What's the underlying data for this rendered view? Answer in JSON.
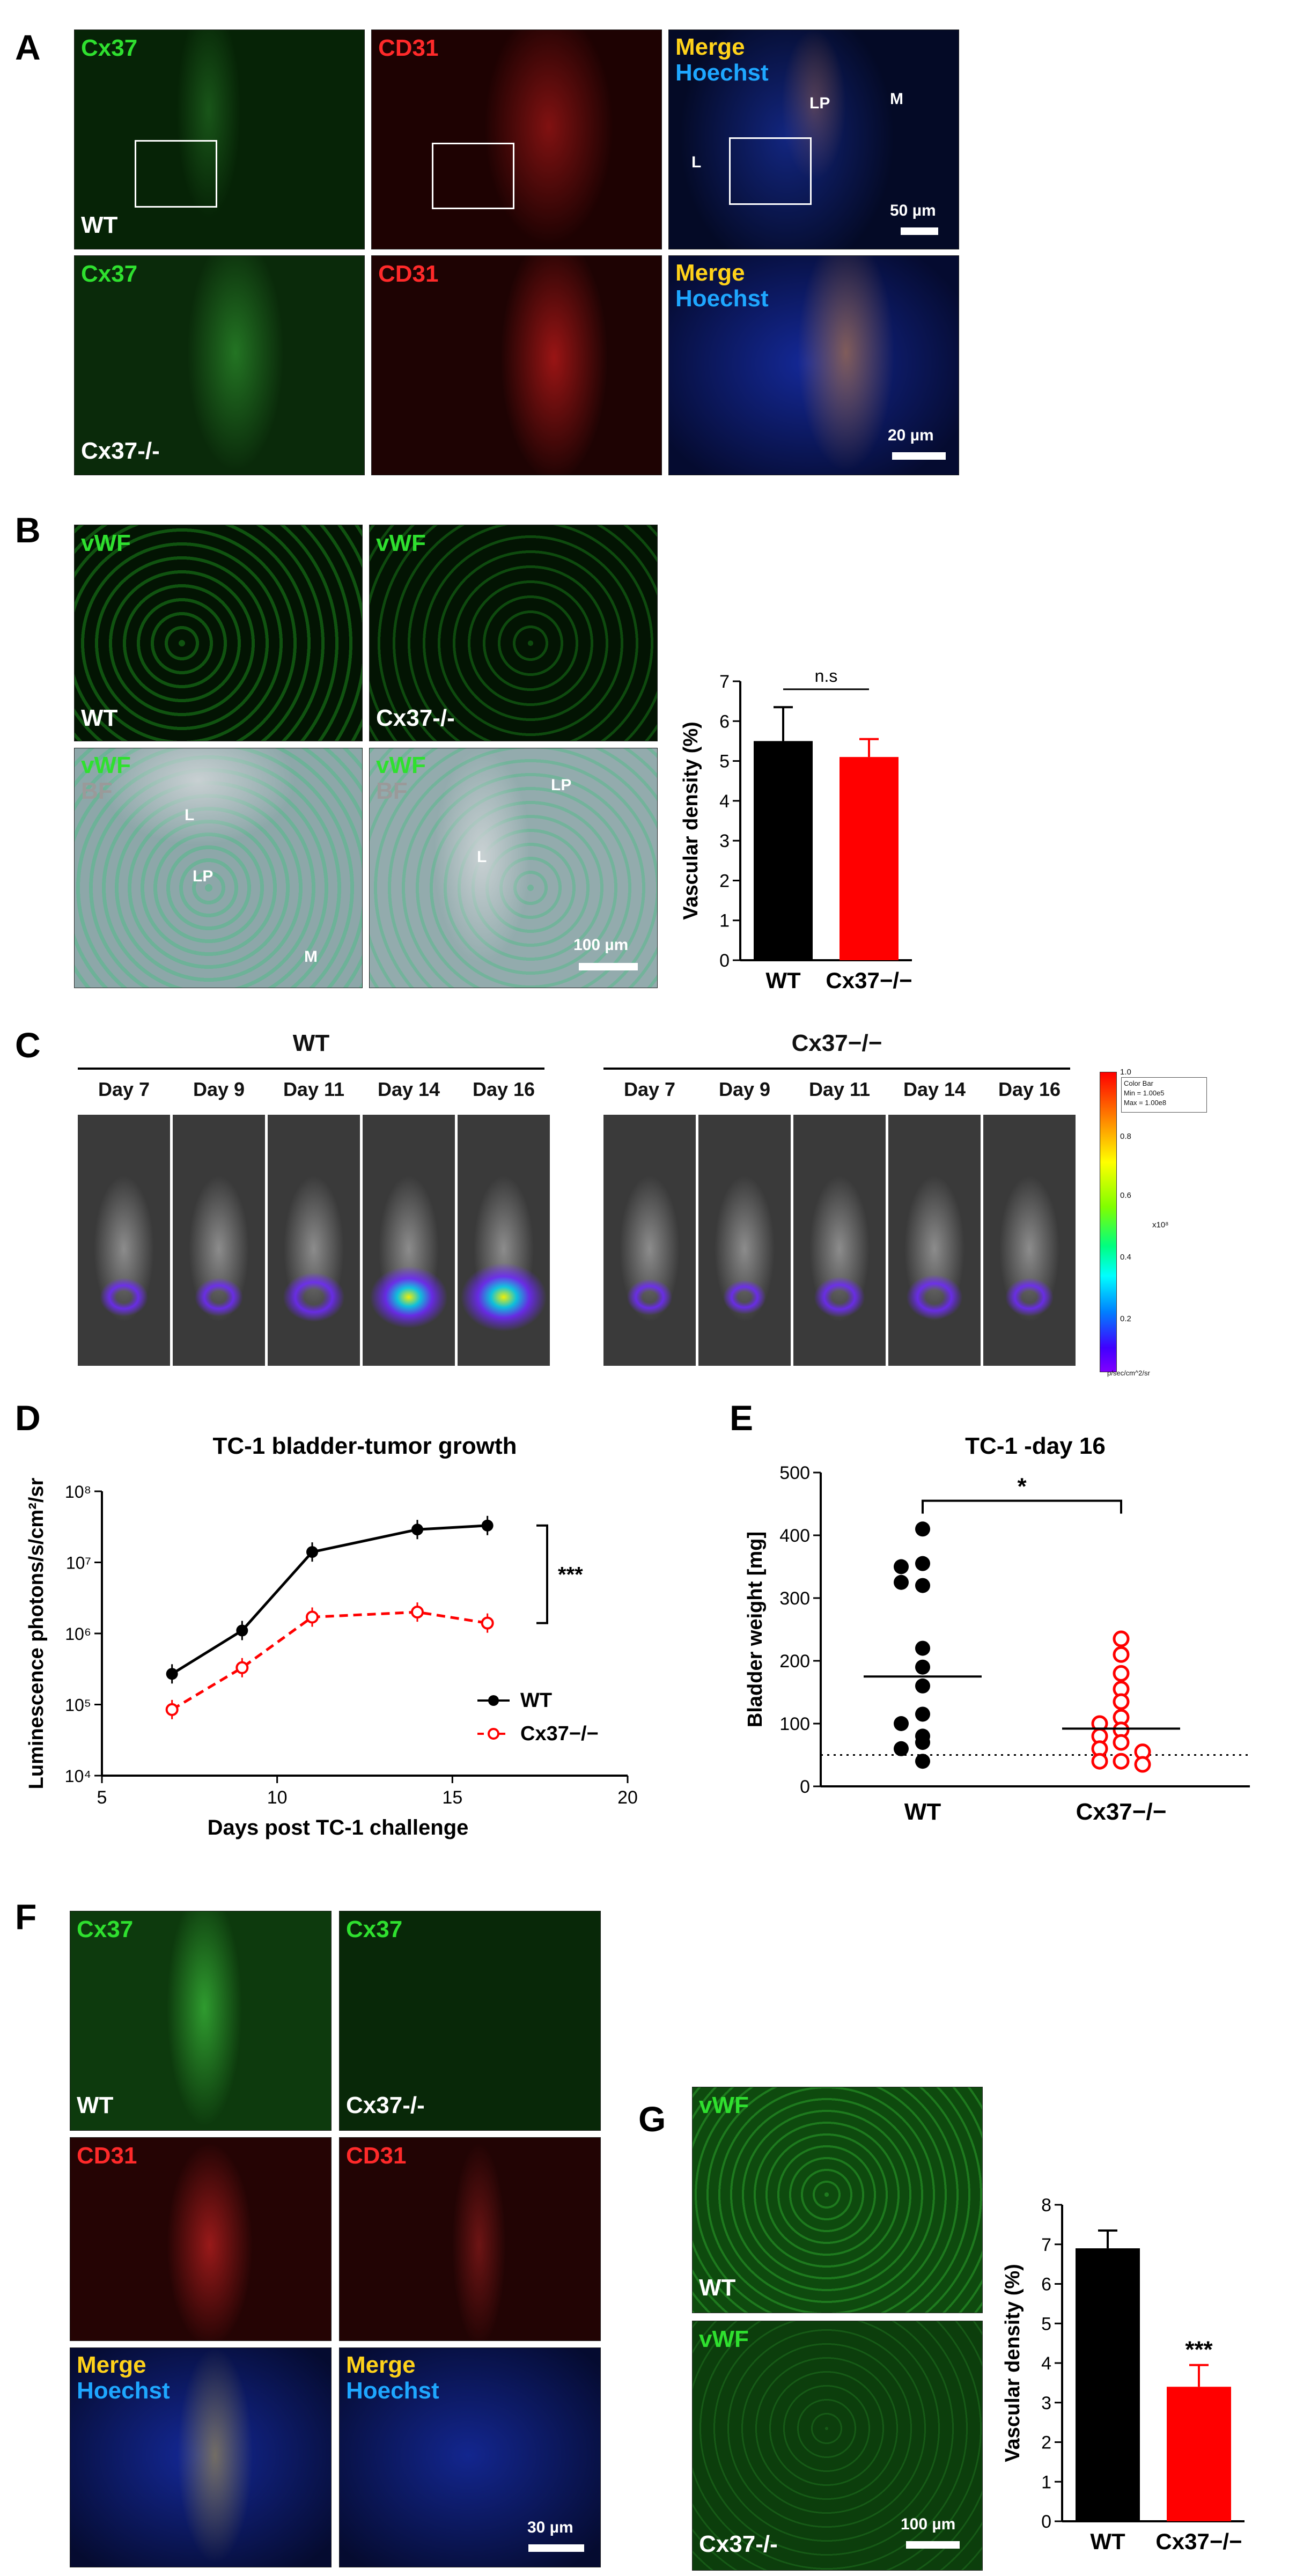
{
  "panels": {
    "A": {
      "letter": "A",
      "row1": {
        "cx37": "Cx37",
        "cd31": "CD31",
        "merge": "Merge",
        "hoechst": "Hoechst",
        "genotype": "WT",
        "L": "L",
        "LP": "LP",
        "M": "M",
        "scale": "50 µm"
      },
      "row2": {
        "cx37": "Cx37",
        "cd31": "CD31",
        "merge": "Merge",
        "hoechst": "Hoechst",
        "genotype": "Cx37-/-",
        "scale": "20 µm"
      }
    },
    "B": {
      "letter": "B",
      "vwf": "vWF",
      "bf": "BF",
      "wt": "WT",
      "ko": "Cx37-/-",
      "L": "L",
      "LP": "LP",
      "M": "M",
      "scale": "100 µm"
    },
    "C": {
      "letter": "C",
      "wt": "WT",
      "ko": "Cx37−/−",
      "days": [
        "Day 7",
        "Day 9",
        "Day 11",
        "Day 14",
        "Day 16"
      ],
      "colorbar": {
        "title": "Color Bar",
        "min": "Min = 1.00e5",
        "max": "Max = 1.00e8",
        "ticks": [
          "1.0",
          "0.8",
          "0.6",
          "0.4",
          "0.2"
        ],
        "exp": "x10⁸",
        "unit": "p/sec/cm^2/sr"
      }
    },
    "D": {
      "letter": "D"
    },
    "E": {
      "letter": "E"
    },
    "F": {
      "letter": "F",
      "cx37": "Cx37",
      "cd31": "CD31",
      "merge": "Merge",
      "hoechst": "Hoechst",
      "wt": "WT",
      "ko": "Cx37-/-",
      "scale": "30 µm"
    },
    "G": {
      "letter": "G",
      "vwf": "vWF",
      "wt": "WT",
      "ko": "Cx37-/-",
      "scale": "100 µm"
    }
  },
  "chart_data": [
    {
      "id": "B-bar",
      "type": "bar",
      "categories": [
        "WT",
        "Cx37−/−"
      ],
      "values": [
        5.5,
        5.1
      ],
      "errors": [
        0.85,
        0.45
      ],
      "colors": [
        "#000000",
        "#ff0000"
      ],
      "ylabel": "Vascular density (%)",
      "ylim": [
        0,
        7
      ],
      "yticks": [
        "0",
        "1",
        "2",
        "3",
        "4",
        "5",
        "6",
        "7"
      ],
      "significance": "n.s"
    },
    {
      "id": "D-line",
      "type": "line",
      "title": "TC-1 bladder-tumor growth",
      "xlabel": "Days post TC-1 challenge",
      "ylabel": "Luminescence photons/s/cm²/sr",
      "log_y": true,
      "xlim": [
        5,
        20
      ],
      "ylim_exp": [
        4,
        8
      ],
      "xticks": [
        "5",
        "10",
        "15",
        "20"
      ],
      "yticks": [
        "10⁴",
        "10⁵",
        "10⁶",
        "10⁷",
        "10⁸"
      ],
      "x": [
        7,
        9,
        11,
        14,
        16
      ],
      "series": [
        {
          "name": "WT",
          "values": [
            270000,
            1100000,
            14000000,
            29000000,
            33000000
          ],
          "color": "#000000",
          "style": "solid"
        },
        {
          "name": "Cx37−/−",
          "values": [
            85000,
            330000,
            1700000,
            2000000,
            1400000
          ],
          "color": "#ff0000",
          "style": "dashed"
        }
      ],
      "significance": "***"
    },
    {
      "id": "E-scatter",
      "type": "scatter",
      "title": "TC-1 -day 16",
      "ylabel": "Bladder weight [mg]",
      "ylim": [
        0,
        500
      ],
      "yticks": [
        "0",
        "100",
        "200",
        "300",
        "400",
        "500"
      ],
      "categories": [
        "WT",
        "Cx37−/−"
      ],
      "series": [
        {
          "name": "WT",
          "values": [
            410,
            355,
            350,
            320,
            325,
            220,
            190,
            160,
            115,
            100,
            80,
            70,
            40,
            60
          ],
          "median": 175,
          "color": "#000000",
          "filled": true
        },
        {
          "name": "Cx37−/−",
          "values": [
            235,
            210,
            180,
            155,
            135,
            110,
            100,
            90,
            80,
            70,
            60,
            55,
            40,
            40,
            35
          ],
          "median": 92,
          "color": "#ff0000",
          "filled": false
        }
      ],
      "baseline": 50,
      "significance": "*"
    },
    {
      "id": "G-bar",
      "type": "bar",
      "categories": [
        "WT",
        "Cx37−/−"
      ],
      "values": [
        6.9,
        3.4
      ],
      "errors": [
        0.45,
        0.55
      ],
      "colors": [
        "#000000",
        "#ff0000"
      ],
      "ylabel": "Vascular density (%)",
      "ylim": [
        0,
        8
      ],
      "yticks": [
        "0",
        "1",
        "2",
        "3",
        "4",
        "5",
        "6",
        "7",
        "8"
      ],
      "significance": "***"
    }
  ]
}
